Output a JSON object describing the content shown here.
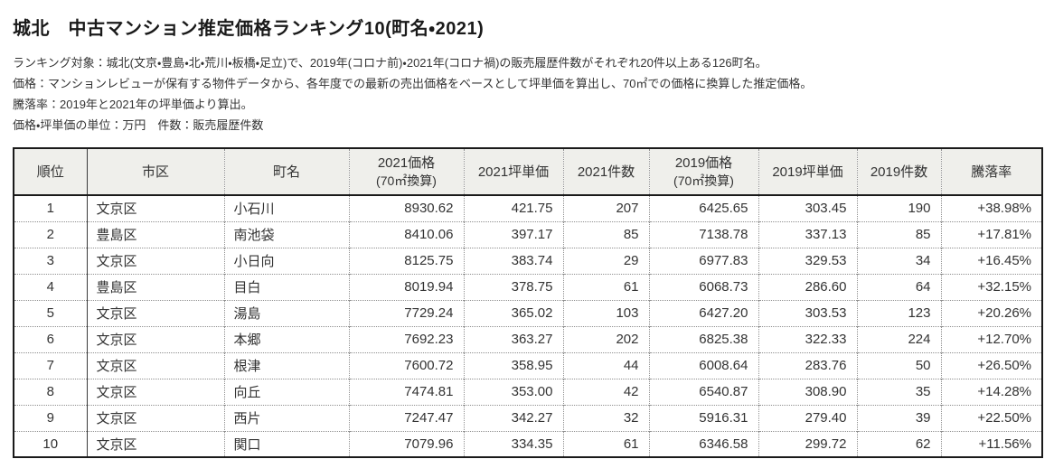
{
  "page": {
    "title": "城北　中古マンション推定価格ランキング10(町名・2021)",
    "notes": [
      "ランキング対象：城北(文京・豊島・北・荒川・板橋・足立)で、2019年(コロナ前)・2021年(コロナ禍)の販売履歴件数がそれぞれ20件以上ある126町名。",
      "価格：マンションレビューが保有する物件データから、各年度での最新の売出価格をベースとして坪単価を算出し、70㎡での価格に換算した推定価格。",
      "騰落率：2019年と2021年の坪単価より算出。",
      "価格・坪単価の単位：万円　件数：販売履歴件数"
    ]
  },
  "colors": {
    "header_bg": "#efefeb",
    "outer_border": "#1a1a1a",
    "dotted_border": "#8f8f8f",
    "text": "#333333"
  },
  "chart_data": {
    "type": "table",
    "title": "城北　中古マンション推定価格ランキング10(町名・2021)",
    "columns": [
      {
        "key": "rank",
        "label": "順位",
        "sub": ""
      },
      {
        "key": "ward",
        "label": "市区",
        "sub": ""
      },
      {
        "key": "town",
        "label": "町名",
        "sub": ""
      },
      {
        "key": "price2021",
        "label": "2021価格",
        "sub": "(70㎡換算)"
      },
      {
        "key": "unit2021",
        "label": "2021坪単価",
        "sub": ""
      },
      {
        "key": "count2021",
        "label": "2021件数",
        "sub": ""
      },
      {
        "key": "price2019",
        "label": "2019価格",
        "sub": "(70㎡換算)"
      },
      {
        "key": "unit2019",
        "label": "2019坪単価",
        "sub": ""
      },
      {
        "key": "count2019",
        "label": "2019件数",
        "sub": ""
      },
      {
        "key": "change",
        "label": "騰落率",
        "sub": ""
      }
    ],
    "rows": [
      [
        "1",
        "文京区",
        "小石川",
        "8930.62",
        "421.75",
        "207",
        "6425.65",
        "303.45",
        "190",
        "+38.98%"
      ],
      [
        "2",
        "豊島区",
        "南池袋",
        "8410.06",
        "397.17",
        "85",
        "7138.78",
        "337.13",
        "85",
        "+17.81%"
      ],
      [
        "3",
        "文京区",
        "小日向",
        "8125.75",
        "383.74",
        "29",
        "6977.83",
        "329.53",
        "34",
        "+16.45%"
      ],
      [
        "4",
        "豊島区",
        "目白",
        "8019.94",
        "378.75",
        "61",
        "6068.73",
        "286.60",
        "64",
        "+32.15%"
      ],
      [
        "5",
        "文京区",
        "湯島",
        "7729.24",
        "365.02",
        "103",
        "6427.20",
        "303.53",
        "123",
        "+20.26%"
      ],
      [
        "6",
        "文京区",
        "本郷",
        "7692.23",
        "363.27",
        "202",
        "6825.38",
        "322.33",
        "224",
        "+12.70%"
      ],
      [
        "7",
        "文京区",
        "根津",
        "7600.72",
        "358.95",
        "44",
        "6008.64",
        "283.76",
        "50",
        "+26.50%"
      ],
      [
        "8",
        "文京区",
        "向丘",
        "7474.81",
        "353.00",
        "42",
        "6540.87",
        "308.90",
        "35",
        "+14.28%"
      ],
      [
        "9",
        "文京区",
        "西片",
        "7247.47",
        "342.27",
        "32",
        "5916.31",
        "279.40",
        "39",
        "+22.50%"
      ],
      [
        "10",
        "文京区",
        "関口",
        "7079.96",
        "334.35",
        "61",
        "6346.58",
        "299.72",
        "62",
        "+11.56%"
      ]
    ]
  }
}
